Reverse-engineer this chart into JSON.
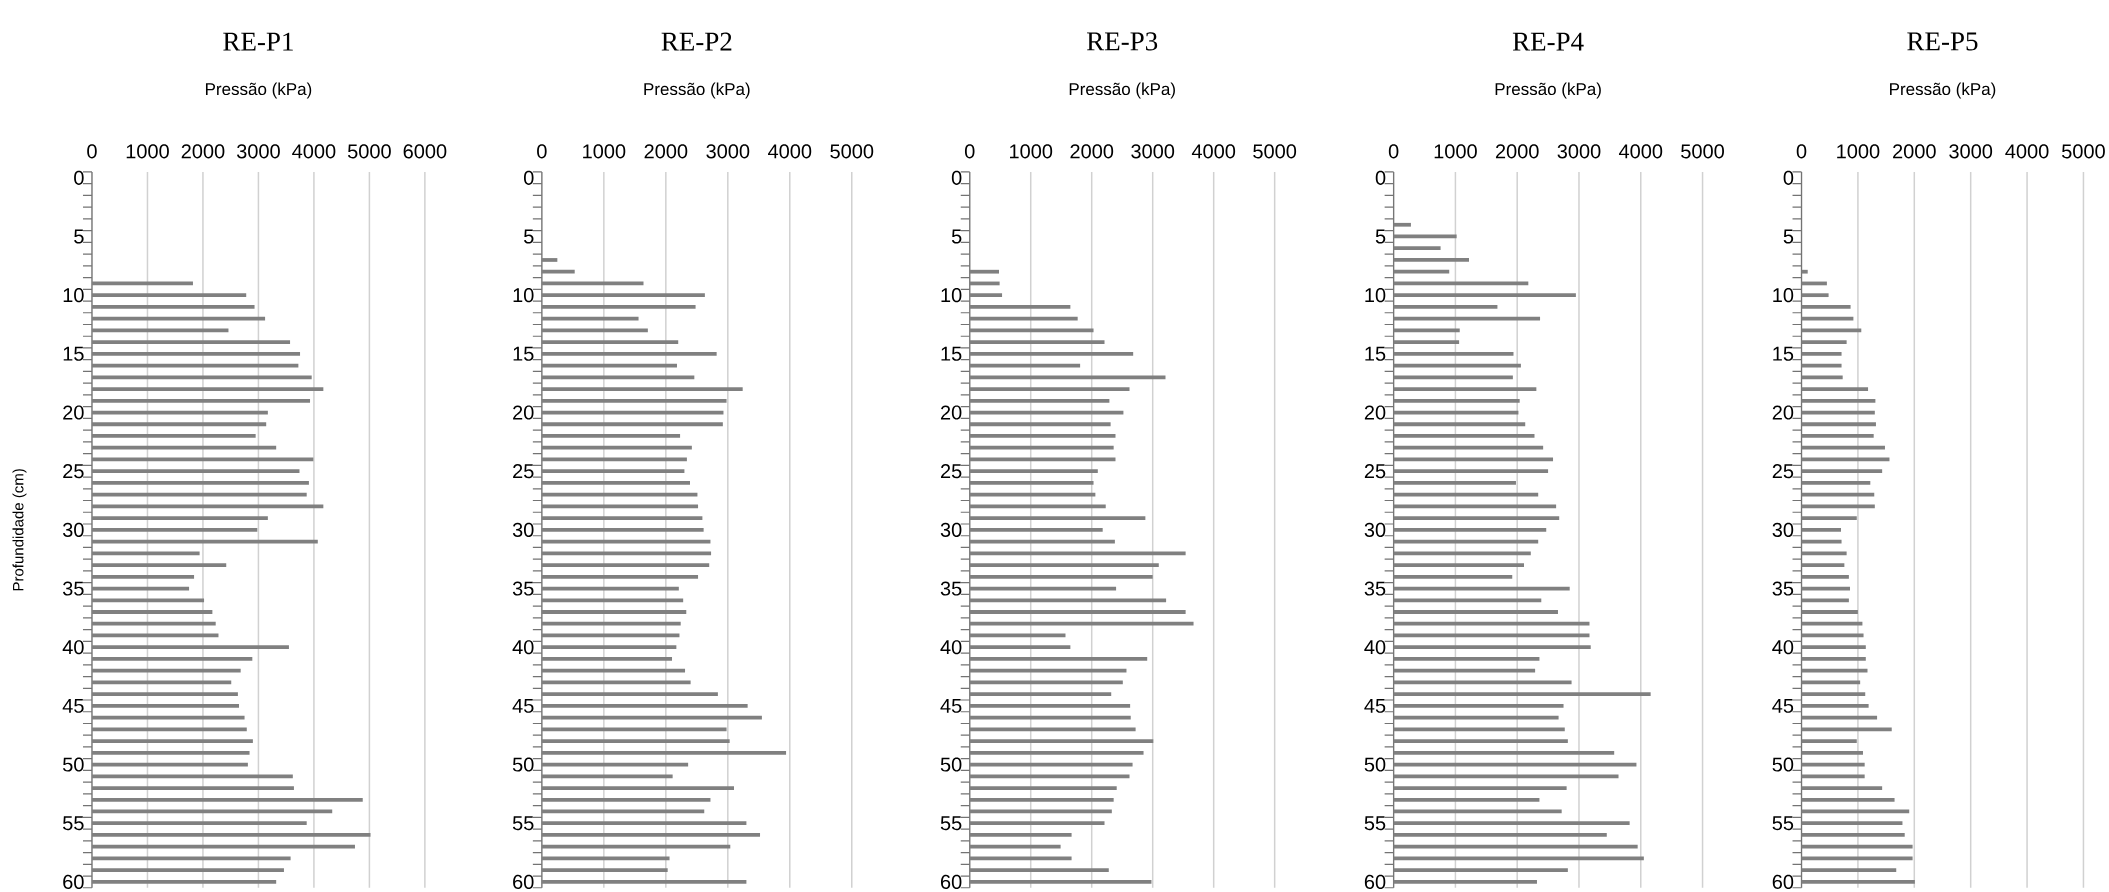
{
  "chart_data": [
    {
      "type": "bar",
      "orientation": "horizontal",
      "title": "RE-P1",
      "xlabel": "Pressão (kPa)",
      "ylabel": "Profundidade (cm)",
      "color": "#808080",
      "grid": "x",
      "categories": [
        "0",
        null,
        null,
        null,
        null,
        "5",
        null,
        null,
        null,
        null,
        "10",
        null,
        null,
        null,
        null,
        "15",
        null,
        null,
        null,
        null,
        "20",
        null,
        null,
        null,
        null,
        "25",
        null,
        null,
        null,
        null,
        "30",
        null,
        null,
        null,
        null,
        "35",
        null,
        null,
        null,
        null,
        "40",
        null,
        null,
        null,
        null,
        "45",
        null,
        null,
        null,
        null,
        "50",
        null,
        null,
        null,
        null,
        "55",
        null,
        null,
        null,
        null,
        "60"
      ],
      "values": [
        null,
        null,
        null,
        null,
        null,
        null,
        null,
        null,
        null,
        1820,
        2780,
        2930,
        3120,
        2460,
        3570,
        3750,
        3720,
        3960,
        4170,
        3930,
        3170,
        3140,
        2950,
        3320,
        3990,
        3740,
        3910,
        3870,
        4170,
        3170,
        2980,
        4070,
        1940,
        2420,
        1840,
        1750,
        2020,
        2170,
        2230,
        2280,
        3550,
        2890,
        2680,
        2510,
        2630,
        2650,
        2750,
        2790,
        2900,
        2840,
        2810,
        3620,
        3640,
        4880,
        4330,
        3870,
        5020,
        4740,
        3580,
        3460,
        3320
      ],
      "xlim": [
        0,
        6000
      ],
      "xticks": [
        0,
        1000,
        2000,
        3000,
        4000,
        5000,
        6000
      ]
    },
    {
      "type": "bar",
      "orientation": "horizontal",
      "title": "RE-P2",
      "xlabel": "Pressão (kPa)",
      "color": "#808080",
      "grid": "x",
      "categories": [
        "0",
        null,
        null,
        null,
        null,
        "5",
        null,
        null,
        null,
        null,
        "10",
        null,
        null,
        null,
        null,
        "15",
        null,
        null,
        null,
        null,
        "20",
        null,
        null,
        null,
        null,
        "25",
        null,
        null,
        null,
        null,
        "30",
        null,
        null,
        null,
        null,
        "35",
        null,
        null,
        null,
        null,
        "40",
        null,
        null,
        null,
        null,
        "45",
        null,
        null,
        null,
        null,
        "50",
        null,
        null,
        null,
        null,
        "55",
        null,
        null,
        null,
        null,
        "60"
      ],
      "values": [
        null,
        null,
        null,
        null,
        null,
        null,
        null,
        250,
        530,
        1640,
        2630,
        2480,
        1560,
        1710,
        2200,
        2820,
        2180,
        2460,
        3240,
        2980,
        2930,
        2920,
        2230,
        2420,
        2340,
        2300,
        2390,
        2510,
        2520,
        2590,
        2610,
        2720,
        2730,
        2700,
        2520,
        2210,
        2280,
        2330,
        2240,
        2220,
        2170,
        2100,
        2310,
        2400,
        2840,
        3320,
        3550,
        2980,
        3030,
        3940,
        2360,
        2110,
        3100,
        2720,
        2620,
        3300,
        3520,
        3040,
        2060,
        2030,
        3300
      ],
      "xlim": [
        0,
        5000
      ],
      "xticks": [
        0,
        1000,
        2000,
        3000,
        4000,
        5000
      ]
    },
    {
      "type": "bar",
      "orientation": "horizontal",
      "title": "RE-P3",
      "xlabel": "Pressão (kPa)",
      "color": "#808080",
      "grid": "x",
      "categories": [
        "0",
        null,
        null,
        null,
        null,
        "5",
        null,
        null,
        null,
        null,
        "10",
        null,
        null,
        null,
        null,
        "15",
        null,
        null,
        null,
        null,
        "20",
        null,
        null,
        null,
        null,
        "25",
        null,
        null,
        null,
        null,
        "30",
        null,
        null,
        null,
        null,
        "35",
        null,
        null,
        null,
        null,
        "40",
        null,
        null,
        null,
        null,
        "45",
        null,
        null,
        null,
        null,
        "50",
        null,
        null,
        null,
        null,
        "55",
        null,
        null,
        null,
        null,
        "60"
      ],
      "values": [
        null,
        null,
        null,
        null,
        null,
        null,
        null,
        null,
        480,
        490,
        530,
        1650,
        1770,
        2030,
        2210,
        2680,
        1810,
        3210,
        2620,
        2290,
        2520,
        2310,
        2390,
        2360,
        2390,
        2100,
        2030,
        2060,
        2230,
        2880,
        2180,
        2380,
        3540,
        3100,
        3000,
        2400,
        3220,
        3540,
        3670,
        1570,
        1650,
        2910,
        2570,
        2510,
        2320,
        2630,
        2640,
        2720,
        3010,
        2850,
        2670,
        2620,
        2410,
        2360,
        2330,
        2210,
        1670,
        1490,
        1670,
        2280,
        2980
      ],
      "xlim": [
        0,
        5000
      ],
      "xticks": [
        0,
        1000,
        2000,
        3000,
        4000,
        5000
      ]
    },
    {
      "type": "bar",
      "orientation": "horizontal",
      "title": "RE-P4",
      "xlabel": "Pressão (kPa)",
      "color": "#808080",
      "grid": "x",
      "categories": [
        "0",
        null,
        null,
        null,
        null,
        "5",
        null,
        null,
        null,
        null,
        "10",
        null,
        null,
        null,
        null,
        "15",
        null,
        null,
        null,
        null,
        "20",
        null,
        null,
        null,
        null,
        "25",
        null,
        null,
        null,
        null,
        "30",
        null,
        null,
        null,
        null,
        "35",
        null,
        null,
        null,
        null,
        "40",
        null,
        null,
        null,
        null,
        "45",
        null,
        null,
        null,
        null,
        "50",
        null,
        null,
        null,
        null,
        "55",
        null,
        null,
        null,
        null,
        "60"
      ],
      "values": [
        null,
        null,
        null,
        null,
        280,
        1020,
        760,
        1220,
        900,
        2180,
        2950,
        1680,
        2370,
        1070,
        1060,
        1940,
        2060,
        1930,
        2310,
        2040,
        2020,
        2130,
        2280,
        2420,
        2580,
        2500,
        1980,
        2340,
        2630,
        2680,
        2470,
        2340,
        2220,
        2110,
        1920,
        2850,
        2390,
        2660,
        3170,
        3170,
        3190,
        2360,
        2290,
        2880,
        4160,
        2750,
        2670,
        2770,
        2820,
        3570,
        3930,
        3640,
        2800,
        2360,
        2720,
        3820,
        3450,
        3950,
        4050,
        2820,
        2320
      ],
      "xlim": [
        0,
        5000
      ],
      "xticks": [
        0,
        1000,
        2000,
        3000,
        4000,
        5000
      ]
    },
    {
      "type": "bar",
      "orientation": "horizontal",
      "title": "RE-P5",
      "xlabel": "Pressão (kPa)",
      "color": "#808080",
      "grid": "x",
      "categories": [
        "0",
        null,
        null,
        null,
        null,
        "5",
        null,
        null,
        null,
        null,
        "10",
        null,
        null,
        null,
        null,
        "15",
        null,
        null,
        null,
        null,
        "20",
        null,
        null,
        null,
        null,
        "25",
        null,
        null,
        null,
        null,
        "30",
        null,
        null,
        null,
        null,
        "35",
        null,
        null,
        null,
        null,
        "40",
        null,
        null,
        null,
        null,
        "45",
        null,
        null,
        null,
        null,
        "50",
        null,
        null,
        null,
        null,
        "55",
        null,
        null,
        null,
        null,
        "60"
      ],
      "values": [
        null,
        null,
        null,
        null,
        null,
        null,
        null,
        null,
        110,
        450,
        480,
        870,
        920,
        1060,
        800,
        710,
        710,
        730,
        1180,
        1310,
        1300,
        1320,
        1280,
        1480,
        1560,
        1430,
        1220,
        1290,
        1300,
        980,
        700,
        710,
        800,
        760,
        840,
        860,
        840,
        1000,
        1080,
        1100,
        1140,
        1140,
        1170,
        1040,
        1130,
        1190,
        1340,
        1600,
        980,
        1090,
        1120,
        1120,
        1430,
        1650,
        1910,
        1790,
        1830,
        1970,
        1970,
        1680,
        2010
      ],
      "xlim": [
        0,
        5000
      ],
      "xticks": [
        0,
        1000,
        2000,
        3000,
        4000,
        5000
      ]
    }
  ]
}
